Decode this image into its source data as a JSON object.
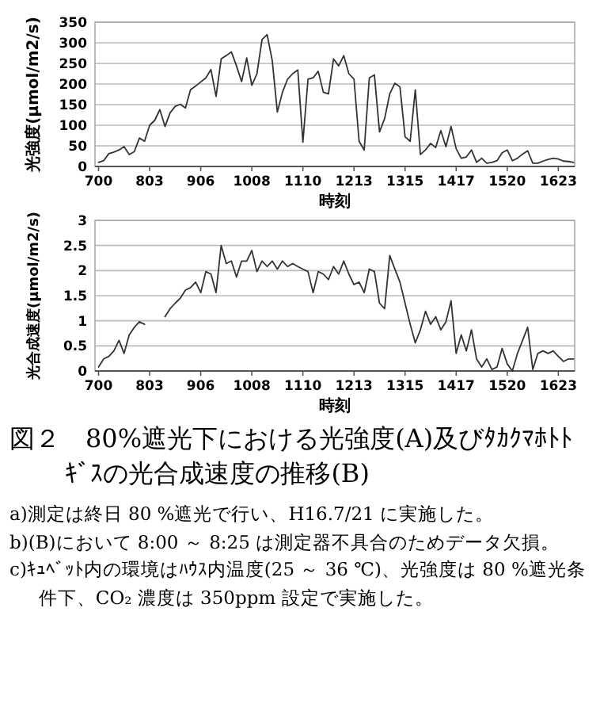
{
  "chart_data": [
    {
      "type": "line",
      "xlabel": "時刻",
      "ylabel": "光強度(μmol/m2/s)",
      "ylim": [
        0,
        350
      ],
      "grid": "y",
      "categories": [
        "700",
        null,
        null,
        null,
        null,
        null,
        null,
        null,
        null,
        null,
        "803",
        null,
        null,
        null,
        null,
        null,
        null,
        null,
        null,
        null,
        "906",
        null,
        null,
        null,
        null,
        null,
        null,
        null,
        null,
        null,
        "1008",
        null,
        null,
        null,
        null,
        null,
        null,
        null,
        null,
        null,
        "1110",
        null,
        null,
        null,
        null,
        null,
        null,
        null,
        null,
        null,
        "1213",
        null,
        null,
        null,
        null,
        null,
        null,
        null,
        null,
        null,
        "1315",
        null,
        null,
        null,
        null,
        null,
        null,
        null,
        null,
        null,
        "1417",
        null,
        null,
        null,
        null,
        null,
        null,
        null,
        null,
        null,
        "1520",
        null,
        null,
        null,
        null,
        null,
        null,
        null,
        null,
        null,
        "1623",
        null,
        null,
        null
      ],
      "yticks": [
        0,
        50,
        100,
        150,
        200,
        250,
        300,
        350
      ],
      "series": [
        {
          "color": "#333333",
          "values": [
            10,
            14,
            31,
            35,
            40,
            48,
            29,
            36,
            69,
            61,
            100,
            112,
            138,
            97,
            130,
            146,
            151,
            142,
            186,
            195,
            205,
            215,
            235,
            170,
            261,
            269,
            278,
            244,
            206,
            263,
            197,
            225,
            308,
            320,
            257,
            132,
            180,
            212,
            225,
            234,
            59,
            212,
            215,
            231,
            180,
            176,
            261,
            244,
            269,
            225,
            212,
            61,
            40,
            215,
            222,
            84,
            116,
            176,
            202,
            193,
            72,
            61,
            186,
            29,
            40,
            56,
            46,
            87,
            48,
            97,
            43,
            20,
            23,
            40,
            10,
            20,
            8,
            10,
            14,
            33,
            40,
            14,
            20,
            30,
            38,
            8,
            8,
            13,
            17,
            20,
            18,
            13,
            12,
            10
          ]
        }
      ]
    },
    {
      "type": "line",
      "title": "図２　80%遮光下における光強度(A)及びﾀｶｸﾏﾎﾄﾄｷﾞｽの光合成速度の推移(B)",
      "xlabel": "時刻",
      "ylabel": "光合成速度(μmol/m2/s)",
      "ylim": [
        0,
        3
      ],
      "grid": "y",
      "categories": [
        "700",
        null,
        null,
        null,
        null,
        null,
        null,
        null,
        null,
        null,
        "803",
        null,
        null,
        null,
        null,
        null,
        null,
        null,
        null,
        null,
        "906",
        null,
        null,
        null,
        null,
        null,
        null,
        null,
        null,
        null,
        "1008",
        null,
        null,
        null,
        null,
        null,
        null,
        null,
        null,
        null,
        "1110",
        null,
        null,
        null,
        null,
        null,
        null,
        null,
        null,
        null,
        "1213",
        null,
        null,
        null,
        null,
        null,
        null,
        null,
        null,
        null,
        "1315",
        null,
        null,
        null,
        null,
        null,
        null,
        null,
        null,
        null,
        "1417",
        null,
        null,
        null,
        null,
        null,
        null,
        null,
        null,
        null,
        "1520",
        null,
        null,
        null,
        null,
        null,
        null,
        null,
        null,
        null,
        "1623",
        null,
        null,
        null
      ],
      "yticks": [
        0,
        0.5,
        1,
        1.5,
        2,
        2.5,
        3
      ],
      "annotations": [
        "a)測定は終日 80 %遮光で行い、H16.7/21 に実施した。",
        "b)(B)において 8:00 ～ 8:25 は測定器不具合のためデータ欠損。",
        "c)ｷｭﾍﾞｯﾄ内の環境はﾊｳｽ内温度(25 ～ 36 ℃)、光強度は 80 %遮光条件下、CO₂ 濃度は 350ppm 設定で実施した。"
      ],
      "series": [
        {
          "color": "#333333",
          "values": [
            0.08,
            0.24,
            0.29,
            0.4,
            0.61,
            0.35,
            0.72,
            0.87,
            0.98,
            0.93,
            null,
            null,
            null,
            1.08,
            1.24,
            1.35,
            1.45,
            1.61,
            1.66,
            1.77,
            1.56,
            1.98,
            1.93,
            1.56,
            2.5,
            2.14,
            2.19,
            1.87,
            2.19,
            2.19,
            2.4,
            1.98,
            2.19,
            2.08,
            2.19,
            2.03,
            2.19,
            2.08,
            2.14,
            2.08,
            2.03,
            1.98,
            1.56,
            1.98,
            1.93,
            1.82,
            2.08,
            1.93,
            2.19,
            1.93,
            1.72,
            1.77,
            1.56,
            2.03,
            1.98,
            1.35,
            1.24,
            2.3,
            2.03,
            1.77,
            1.35,
            0.93,
            0.56,
            0.82,
            1.19,
            0.93,
            1.08,
            0.82,
            0.98,
            1.4,
            0.35,
            0.72,
            0.4,
            0.82,
            0.24,
            0.08,
            0.24,
            0.03,
            0.08,
            0.45,
            0.14,
            0,
            0.35,
            0.61,
            0.87,
            0.03,
            0.35,
            0.4,
            0.35,
            0.4,
            0.29,
            0.19,
            0.24,
            0.24
          ]
        }
      ]
    }
  ]
}
